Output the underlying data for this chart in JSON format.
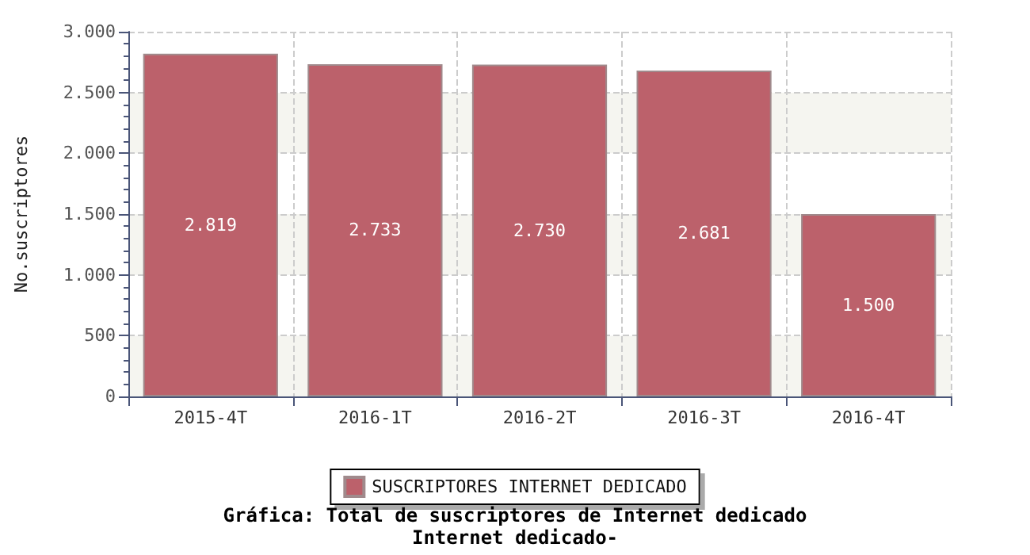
{
  "chart_data": {
    "type": "bar",
    "title": "Gráfica: Total de suscriptores de Internet dedicado",
    "subtitle": "Internet dedicado-",
    "ylabel": "No.suscriptores",
    "categories": [
      "2015-4T",
      "2016-1T",
      "2016-2T",
      "2016-3T",
      "2016-4T"
    ],
    "series": [
      {
        "name": "SUSCRIPTORES INTERNET DEDICADO",
        "color": "#bc616b",
        "values": [
          2819,
          2733,
          2730,
          2681,
          1500
        ],
        "value_labels": [
          "2.819",
          "2.733",
          "2.730",
          "2.681",
          "1.500"
        ]
      }
    ],
    "ylim": [
      0,
      3000
    ],
    "yticks": [
      {
        "value": 0,
        "label": "0"
      },
      {
        "value": 500,
        "label": "500"
      },
      {
        "value": 1000,
        "label": "1.000"
      },
      {
        "value": 1500,
        "label": "1.500"
      },
      {
        "value": 2000,
        "label": "2.000"
      },
      {
        "value": 2500,
        "label": "2.500"
      },
      {
        "value": 3000,
        "label": "3.000"
      }
    ],
    "grid": true,
    "legend": "bottom"
  }
}
